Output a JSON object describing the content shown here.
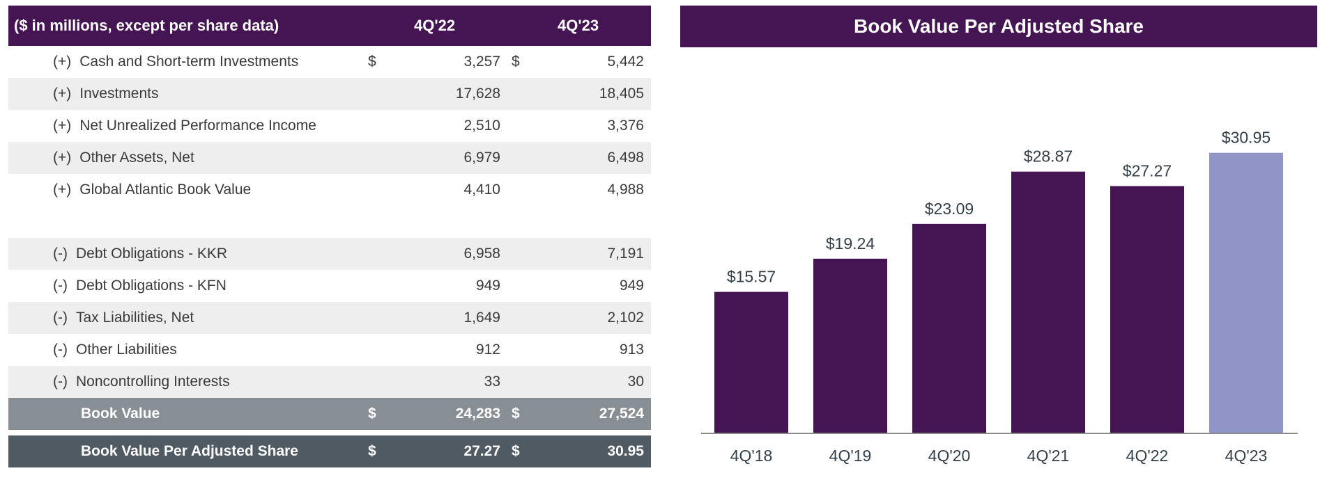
{
  "table": {
    "header": {
      "title": "($ in millions, except per share data)",
      "col1": "4Q'22",
      "col2": "4Q'23"
    },
    "rows": [
      {
        "sign": "(+)",
        "label": "Cash and Short-term Investments",
        "dollar1": "$",
        "v1": "3,257",
        "dollar2": "$",
        "v2": "5,442"
      },
      {
        "sign": "(+)",
        "label": "Investments",
        "dollar1": "",
        "v1": "17,628",
        "dollar2": "",
        "v2": "18,405"
      },
      {
        "sign": "(+)",
        "label": "Net Unrealized Performance Income",
        "dollar1": "",
        "v1": "2,510",
        "dollar2": "",
        "v2": "3,376"
      },
      {
        "sign": "(+)",
        "label": "Other Assets, Net",
        "dollar1": "",
        "v1": "6,979",
        "dollar2": "",
        "v2": "6,498"
      },
      {
        "sign": "(+)",
        "label": "Global Atlantic Book Value",
        "dollar1": "",
        "v1": "4,410",
        "dollar2": "",
        "v2": "4,988"
      },
      {
        "sign": "(-)",
        "label": "Debt Obligations - KKR",
        "dollar1": "",
        "v1": "6,958",
        "dollar2": "",
        "v2": "7,191"
      },
      {
        "sign": "(-)",
        "label": "Debt Obligations - KFN",
        "dollar1": "",
        "v1": "949",
        "dollar2": "",
        "v2": "949"
      },
      {
        "sign": "(-)",
        "label": "Tax Liabilities, Net",
        "dollar1": "",
        "v1": "1,649",
        "dollar2": "",
        "v2": "2,102"
      },
      {
        "sign": "(-)",
        "label": "Other Liabilities",
        "dollar1": "",
        "v1": "912",
        "dollar2": "",
        "v2": "913"
      },
      {
        "sign": "(-)",
        "label": "Noncontrolling Interests",
        "dollar1": "",
        "v1": "33",
        "dollar2": "",
        "v2": "30"
      }
    ],
    "total": {
      "label": "Book Value",
      "dollar1": "$",
      "v1": "24,283",
      "dollar2": "$",
      "v2": "27,524"
    },
    "final": {
      "label": "Book Value Per Adjusted Share",
      "dollar1": "$",
      "v1": "27.27",
      "dollar2": "$",
      "v2": "30.95"
    }
  },
  "chart_data": {
    "type": "bar",
    "title": "Book Value Per Adjusted Share",
    "categories": [
      "4Q'18",
      "4Q'19",
      "4Q'20",
      "4Q'21",
      "4Q'22",
      "4Q'23"
    ],
    "values": [
      15.57,
      19.24,
      23.09,
      28.87,
      27.27,
      30.95
    ],
    "data_labels": [
      "$15.57",
      "$19.24",
      "$23.09",
      "$28.87",
      "$27.27",
      "$30.95"
    ],
    "xlabel": "",
    "ylabel": "",
    "ylim": [
      0,
      36
    ],
    "grid": false,
    "colors": [
      "#441552",
      "#441552",
      "#441552",
      "#441552",
      "#441552",
      "#9094c6"
    ]
  },
  "colors": {
    "brand_purple": "#441552",
    "highlight_lavender": "#9094c6",
    "row_shade": "#eeeeee",
    "total_gray": "#878e94",
    "final_slate": "#505a62"
  }
}
